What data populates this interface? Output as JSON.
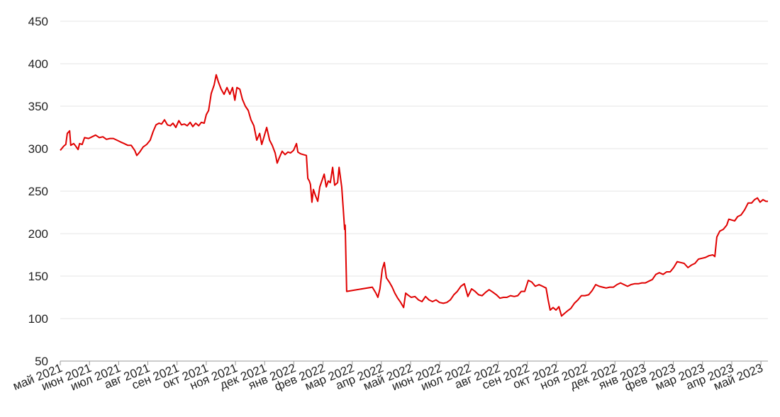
{
  "chart_data": {
    "type": "line",
    "color": "#e00000",
    "grid": true,
    "ylim": [
      50,
      450
    ],
    "yticks": [
      50,
      100,
      150,
      200,
      250,
      300,
      350,
      400,
      450
    ],
    "xlim": [
      0,
      24.24
    ],
    "xticks": [
      {
        "value": 0,
        "label": "май 2021"
      },
      {
        "value": 1,
        "label": "июн 2021"
      },
      {
        "value": 2,
        "label": "июл 2021"
      },
      {
        "value": 3,
        "label": "авг 2021"
      },
      {
        "value": 4,
        "label": "сен 2021"
      },
      {
        "value": 5,
        "label": "окт 2021"
      },
      {
        "value": 6,
        "label": "ноя 2021"
      },
      {
        "value": 7,
        "label": "дек 2021"
      },
      {
        "value": 8,
        "label": "янв 2022"
      },
      {
        "value": 9,
        "label": "фев 2022"
      },
      {
        "value": 10,
        "label": "мар 2022"
      },
      {
        "value": 11,
        "label": "апр 2022"
      },
      {
        "value": 12,
        "label": "май 2022"
      },
      {
        "value": 13,
        "label": "июн 2022"
      },
      {
        "value": 14,
        "label": "июл 2022"
      },
      {
        "value": 15,
        "label": "авг 2022"
      },
      {
        "value": 16,
        "label": "сен 2022"
      },
      {
        "value": 17,
        "label": "окт 2022"
      },
      {
        "value": 18,
        "label": "ноя 2022"
      },
      {
        "value": 19,
        "label": "дек 2022"
      },
      {
        "value": 20,
        "label": "янв 2023"
      },
      {
        "value": 21,
        "label": "фев 2023"
      },
      {
        "value": 22,
        "label": "мар 2023"
      },
      {
        "value": 23,
        "label": "апр 2023"
      },
      {
        "value": 24,
        "label": "май 2023"
      }
    ],
    "x": [
      0,
      0.12,
      0.19,
      0.24,
      0.32,
      0.36,
      0.46,
      0.53,
      0.61,
      0.66,
      0.75,
      0.83,
      0.97,
      1.09,
      1.21,
      1.34,
      1.46,
      1.58,
      1.7,
      1.82,
      1.94,
      2.06,
      2.19,
      2.31,
      2.43,
      2.55,
      2.62,
      2.72,
      2.84,
      2.96,
      3.08,
      3.18,
      3.28,
      3.38,
      3.47,
      3.57,
      3.67,
      3.77,
      3.86,
      3.96,
      4.06,
      4.15,
      4.25,
      4.35,
      4.45,
      4.54,
      4.64,
      4.74,
      4.83,
      4.93,
      5.0,
      5.08,
      5.17,
      5.27,
      5.34,
      5.42,
      5.51,
      5.61,
      5.71,
      5.81,
      5.9,
      5.98,
      6.05,
      6.15,
      6.24,
      6.34,
      6.44,
      6.53,
      6.63,
      6.73,
      6.83,
      6.9,
      6.97,
      7.07,
      7.17,
      7.26,
      7.36,
      7.43,
      7.51,
      7.6,
      7.7,
      7.8,
      7.89,
      7.99,
      8.09,
      8.14,
      8.23,
      8.33,
      8.43,
      8.48,
      8.53,
      8.57,
      8.62,
      8.67,
      8.74,
      8.82,
      8.89,
      8.96,
      9.04,
      9.11,
      9.18,
      9.25,
      9.33,
      9.4,
      9.5,
      9.55,
      9.64,
      9.69,
      9.74,
      9.76,
      9.81,
      10.69,
      10.81,
      10.88,
      10.95,
      11.03,
      11.1,
      11.17,
      11.27,
      11.37,
      11.46,
      11.56,
      11.66,
      11.76,
      11.83,
      11.9,
      12.02,
      12.15,
      12.27,
      12.39,
      12.51,
      12.63,
      12.75,
      12.87,
      12.99,
      13.12,
      13.24,
      13.36,
      13.48,
      13.6,
      13.72,
      13.84,
      13.96,
      14.09,
      14.21,
      14.33,
      14.45,
      14.57,
      14.69,
      14.82,
      14.94,
      15.06,
      15.18,
      15.3,
      15.42,
      15.55,
      15.67,
      15.79,
      15.91,
      16.03,
      16.15,
      16.27,
      16.4,
      16.52,
      16.64,
      16.71,
      16.78,
      16.88,
      16.98,
      17.08,
      17.17,
      17.27,
      17.37,
      17.49,
      17.61,
      17.73,
      17.85,
      17.97,
      18.1,
      18.22,
      18.34,
      18.46,
      18.58,
      18.7,
      18.82,
      18.95,
      19.07,
      19.19,
      19.31,
      19.43,
      19.55,
      19.67,
      19.8,
      19.92,
      20.04,
      20.16,
      20.28,
      20.4,
      20.52,
      20.65,
      20.77,
      20.89,
      21.01,
      21.13,
      21.25,
      21.37,
      21.5,
      21.62,
      21.74,
      21.86,
      21.98,
      22.1,
      22.22,
      22.35,
      22.42,
      22.49,
      22.59,
      22.71,
      22.83,
      22.9,
      23.0,
      23.1,
      23.2,
      23.32,
      23.44,
      23.56,
      23.68,
      23.78,
      23.88,
      23.97,
      24.07,
      24.17,
      24.24
    ],
    "values": [
      298,
      303,
      305,
      318,
      321,
      304,
      306,
      303,
      299,
      306,
      305,
      313,
      312,
      314,
      316,
      313,
      314,
      311,
      312,
      312,
      310,
      308,
      306,
      304,
      304,
      298,
      292,
      296,
      302,
      305,
      310,
      320,
      328,
      330,
      329,
      334,
      328,
      327,
      330,
      325,
      333,
      328,
      329,
      327,
      331,
      326,
      330,
      327,
      331,
      330,
      340,
      345,
      365,
      375,
      387,
      378,
      370,
      364,
      372,
      364,
      372,
      357,
      372,
      370,
      358,
      350,
      345,
      334,
      327,
      310,
      318,
      305,
      313,
      325,
      310,
      304,
      295,
      283,
      290,
      297,
      293,
      296,
      295,
      298,
      306,
      296,
      294,
      293,
      292,
      265,
      262,
      258,
      237,
      252,
      245,
      238,
      255,
      262,
      270,
      255,
      262,
      260,
      278,
      257,
      260,
      278,
      255,
      230,
      205,
      210,
      132,
      137,
      130,
      125,
      135,
      158,
      166,
      148,
      143,
      137,
      130,
      124,
      119,
      113,
      130,
      128,
      125,
      126,
      122,
      120,
      126,
      122,
      120,
      122,
      119,
      118,
      119,
      122,
      128,
      132,
      138,
      141,
      126,
      135,
      132,
      128,
      127,
      131,
      134,
      131,
      128,
      124,
      125,
      125,
      127,
      126,
      127,
      132,
      132,
      145,
      143,
      138,
      140,
      138,
      136,
      122,
      110,
      113,
      110,
      114,
      103,
      106,
      109,
      112,
      118,
      122,
      127,
      127,
      128,
      133,
      140,
      138,
      137,
      136,
      137,
      137,
      140,
      142,
      140,
      138,
      140,
      141,
      141,
      142,
      142,
      144,
      146,
      152,
      154,
      152,
      155,
      155,
      160,
      167,
      166,
      165,
      160,
      163,
      165,
      170,
      171,
      172,
      174,
      175,
      173,
      196,
      203,
      205,
      210,
      217,
      216,
      215,
      220,
      222,
      228,
      236,
      236,
      240,
      242,
      237,
      240,
      238,
      238
    ]
  }
}
